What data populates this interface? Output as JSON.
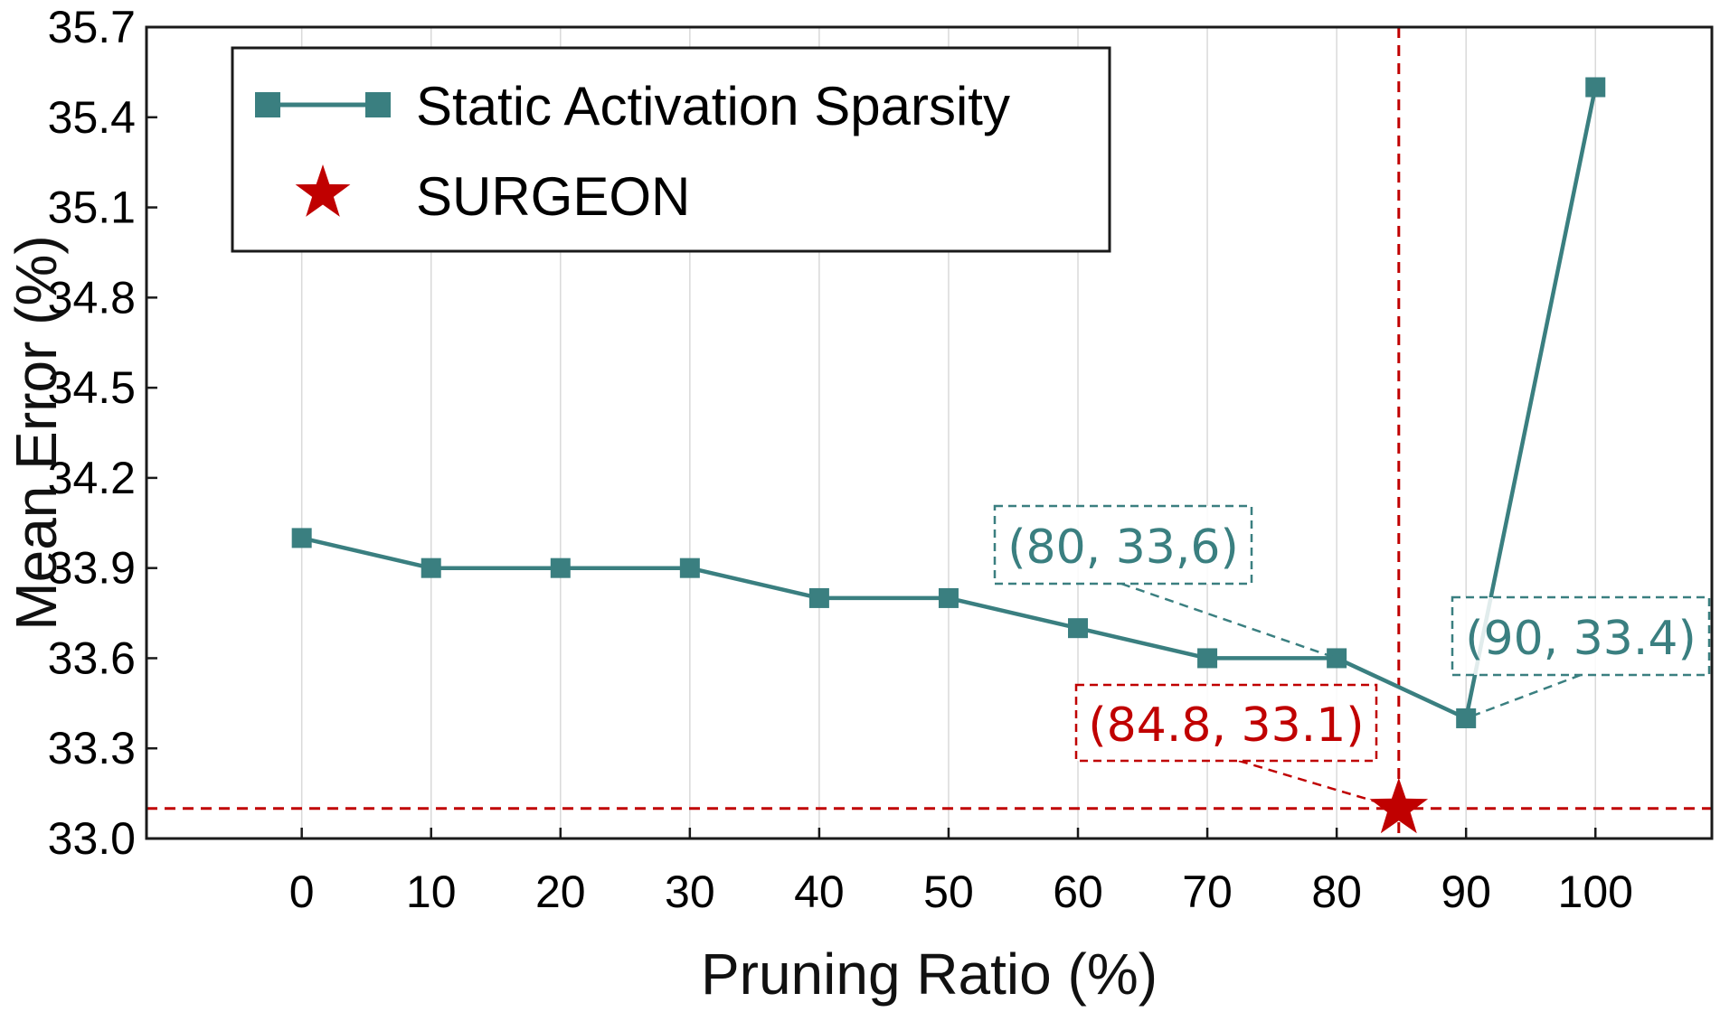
{
  "chart_data": {
    "type": "line",
    "xlabel": "Pruning Ratio (%)",
    "ylabel": "Mean Error (%)",
    "xlim": [
      -12,
      109
    ],
    "ylim": [
      33.0,
      35.7
    ],
    "x_ticks": [
      0,
      10,
      20,
      30,
      40,
      50,
      60,
      70,
      80,
      90,
      100
    ],
    "y_ticks": [
      33.0,
      33.3,
      33.6,
      33.9,
      34.2,
      34.5,
      34.8,
      35.1,
      35.4,
      35.7
    ],
    "y_tick_labels": [
      "33.0",
      "33.3",
      "33.6",
      "33.9",
      "34.2",
      "34.5",
      "34.8",
      "35.1",
      "35.4",
      "35.7"
    ],
    "grid": "vertical",
    "legend_position": "top-left",
    "series": [
      {
        "name": "Static Activation Sparsity",
        "color": "#3a7f80",
        "marker": "square",
        "x": [
          0,
          10,
          20,
          30,
          40,
          50,
          60,
          70,
          80,
          90,
          100
        ],
        "y": [
          34.0,
          33.9,
          33.9,
          33.9,
          33.8,
          33.8,
          33.7,
          33.6,
          33.6,
          33.4,
          35.5
        ]
      },
      {
        "name": "SURGEON",
        "color": "#c00000",
        "marker": "star",
        "x": [
          84.8
        ],
        "y": [
          33.1
        ]
      }
    ],
    "reference_lines": [
      {
        "orientation": "vertical",
        "value": 84.8,
        "color": "#c00000",
        "style": "dashed"
      },
      {
        "orientation": "horizontal",
        "value": 33.1,
        "color": "#c00000",
        "style": "dashed"
      }
    ],
    "annotations": [
      {
        "text": "(80, 33,6)",
        "target": [
          80,
          33.6
        ],
        "color": "#3a7f80"
      },
      {
        "text": "(90, 33.4)",
        "target": [
          90,
          33.4
        ],
        "color": "#3a7f80"
      },
      {
        "text": "(84.8, 33.1)",
        "target": [
          84.8,
          33.1
        ],
        "color": "#c00000"
      }
    ]
  }
}
